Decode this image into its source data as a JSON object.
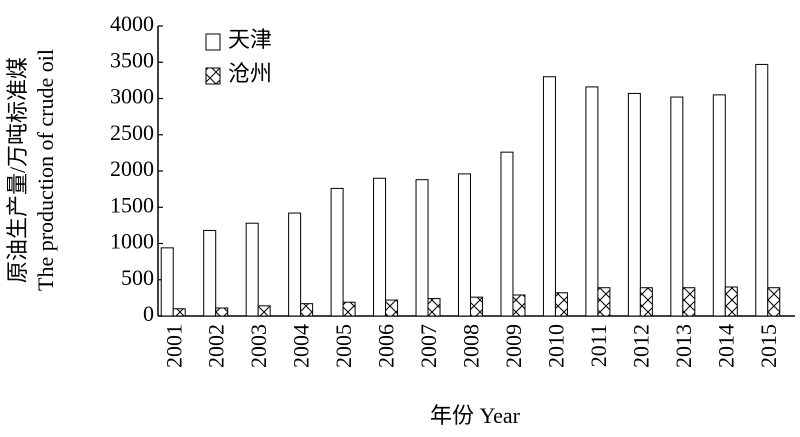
{
  "chart_data": {
    "type": "bar",
    "y_label_zh": "原油生产量/万吨标准煤",
    "y_label_en": "The production of crude oil",
    "x_label": "年份 Year",
    "categories": [
      "2001",
      "2002",
      "2003",
      "2004",
      "2005",
      "2006",
      "2007",
      "2008",
      "2009",
      "2010",
      "2011",
      "2012",
      "2013",
      "2014",
      "2015"
    ],
    "series": [
      {
        "name": "天津",
        "color": "#ffffff",
        "values": [
          940,
          1180,
          1280,
          1420,
          1760,
          1900,
          1880,
          1960,
          2260,
          3300,
          3160,
          3070,
          3020,
          3050,
          3470
        ]
      },
      {
        "name": "沧州",
        "color": "#ffffff",
        "hatch": "cross",
        "values": [
          100,
          110,
          140,
          170,
          190,
          220,
          240,
          260,
          290,
          320,
          390,
          390,
          390,
          400,
          390
        ]
      }
    ],
    "ylim": [
      0,
      4000
    ],
    "yticks": [
      0,
      500,
      1000,
      1500,
      2000,
      2500,
      3000,
      3500,
      4000
    ],
    "grid": false,
    "legend": "upper left"
  }
}
